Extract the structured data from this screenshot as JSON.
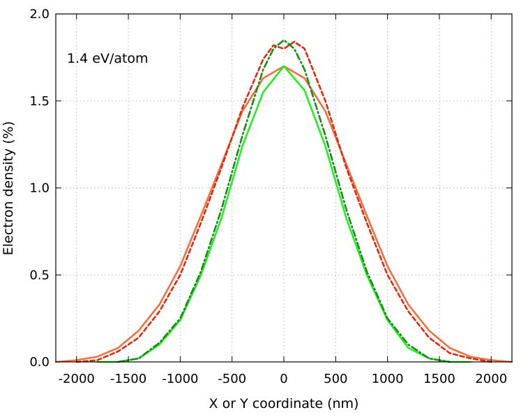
{
  "chart_data": {
    "type": "line",
    "title": "",
    "annotation": "1.4 eV/atom",
    "xlabel": "X or Y coordinate (nm)",
    "ylabel": "Electron density (%)",
    "xlim": [
      -2200,
      2200
    ],
    "ylim": [
      0.0,
      2.0
    ],
    "xticks": [
      -2000,
      -1500,
      -1000,
      -500,
      0,
      500,
      1000,
      1500,
      2000
    ],
    "yticks": [
      0.0,
      0.5,
      1.0,
      1.5,
      2.0
    ],
    "xtick_labels": [
      "-2000",
      "-1500",
      "-1000",
      "-500",
      "0",
      "500",
      "1000",
      "1500",
      "2000"
    ],
    "ytick_labels": [
      "0.0",
      "0.5",
      "1.0",
      "1.5",
      "2.0"
    ],
    "grid": true,
    "legend": "none",
    "series": [
      {
        "style": "solid",
        "color": "#f07040",
        "x": [
          -2200,
          -2000,
          -1800,
          -1600,
          -1400,
          -1200,
          -1000,
          -800,
          -600,
          -400,
          -200,
          0,
          200,
          400,
          600,
          800,
          1000,
          1200,
          1400,
          1600,
          1800,
          2000,
          2200
        ],
        "y": [
          0.0,
          0.01,
          0.03,
          0.08,
          0.18,
          0.33,
          0.55,
          0.84,
          1.14,
          1.44,
          1.63,
          1.7,
          1.63,
          1.44,
          1.14,
          0.84,
          0.55,
          0.33,
          0.18,
          0.08,
          0.03,
          0.01,
          0.0
        ]
      },
      {
        "style": "dashed",
        "color": "#dd2a10",
        "x": [
          -2000,
          -1800,
          -1600,
          -1400,
          -1200,
          -1000,
          -800,
          -600,
          -400,
          -200,
          -100,
          0,
          100,
          200,
          400,
          600,
          800,
          1000,
          1200,
          1400,
          1600,
          1800,
          2000
        ],
        "y": [
          0.0,
          0.01,
          0.06,
          0.14,
          0.29,
          0.5,
          0.8,
          1.12,
          1.46,
          1.74,
          1.82,
          1.8,
          1.84,
          1.8,
          1.5,
          1.12,
          0.8,
          0.5,
          0.29,
          0.14,
          0.05,
          0.02,
          0.0
        ]
      },
      {
        "style": "solid",
        "color": "#22ee22",
        "x": [
          -1800,
          -1600,
          -1400,
          -1200,
          -1000,
          -800,
          -600,
          -400,
          -200,
          0,
          200,
          400,
          600,
          800,
          1000,
          1200,
          1400,
          1600,
          1800
        ],
        "y": [
          0.0,
          0.0,
          0.02,
          0.1,
          0.24,
          0.5,
          0.83,
          1.24,
          1.55,
          1.7,
          1.56,
          1.24,
          0.83,
          0.5,
          0.24,
          0.08,
          0.02,
          0.0,
          0.0
        ]
      },
      {
        "style": "dashdot",
        "color": "#1a8a1a",
        "x": [
          -1600,
          -1400,
          -1200,
          -1000,
          -800,
          -600,
          -400,
          -200,
          -100,
          0,
          100,
          200,
          400,
          600,
          800,
          1000,
          1200,
          1400,
          1600
        ],
        "y": [
          0.0,
          0.02,
          0.11,
          0.25,
          0.52,
          0.88,
          1.3,
          1.68,
          1.8,
          1.85,
          1.8,
          1.68,
          1.3,
          0.88,
          0.52,
          0.25,
          0.1,
          0.02,
          0.0
        ]
      }
    ]
  }
}
